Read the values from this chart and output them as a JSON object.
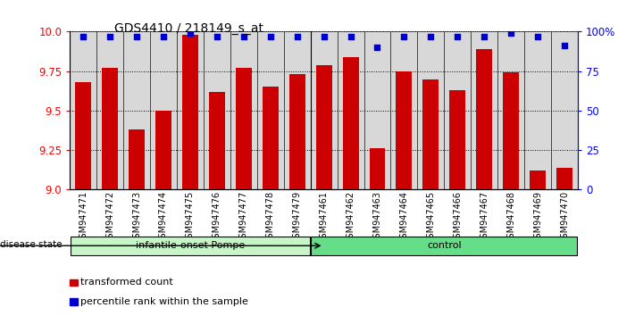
{
  "title": "GDS4410 / 218149_s_at",
  "samples": [
    "GSM947471",
    "GSM947472",
    "GSM947473",
    "GSM947474",
    "GSM947475",
    "GSM947476",
    "GSM947477",
    "GSM947478",
    "GSM947479",
    "GSM947461",
    "GSM947462",
    "GSM947463",
    "GSM947464",
    "GSM947465",
    "GSM947466",
    "GSM947467",
    "GSM947468",
    "GSM947469",
    "GSM947470"
  ],
  "bar_values": [
    9.68,
    9.77,
    9.38,
    9.5,
    9.98,
    9.62,
    9.77,
    9.65,
    9.73,
    9.79,
    9.84,
    9.26,
    9.75,
    9.7,
    9.63,
    9.89,
    9.74,
    9.12,
    9.14
  ],
  "percentile_values": [
    97,
    97,
    97,
    97,
    99,
    97,
    97,
    97,
    97,
    97,
    97,
    90,
    97,
    97,
    97,
    97,
    99,
    97,
    91
  ],
  "group_labels": [
    "infantile-onset Pompe",
    "control"
  ],
  "group_counts": [
    9,
    10
  ],
  "bar_color": "#CC0000",
  "dot_color": "#0000CC",
  "ylim": [
    9.0,
    10.0
  ],
  "y2lim": [
    0,
    100
  ],
  "yticks": [
    9.0,
    9.25,
    9.5,
    9.75,
    10.0
  ],
  "y2ticks": [
    0,
    25,
    50,
    75,
    100
  ],
  "y2ticklabels": [
    "0",
    "25",
    "50",
    "75",
    "100%"
  ],
  "legend_bar_label": "transformed count",
  "legend_dot_label": "percentile rank within the sample",
  "disease_state_label": "disease state",
  "background_color": "#ffffff",
  "plot_bg_color": "#ffffff",
  "bar_width": 0.6,
  "group_colors_left": "#c8f5c8",
  "group_colors_right": "#66dd88"
}
